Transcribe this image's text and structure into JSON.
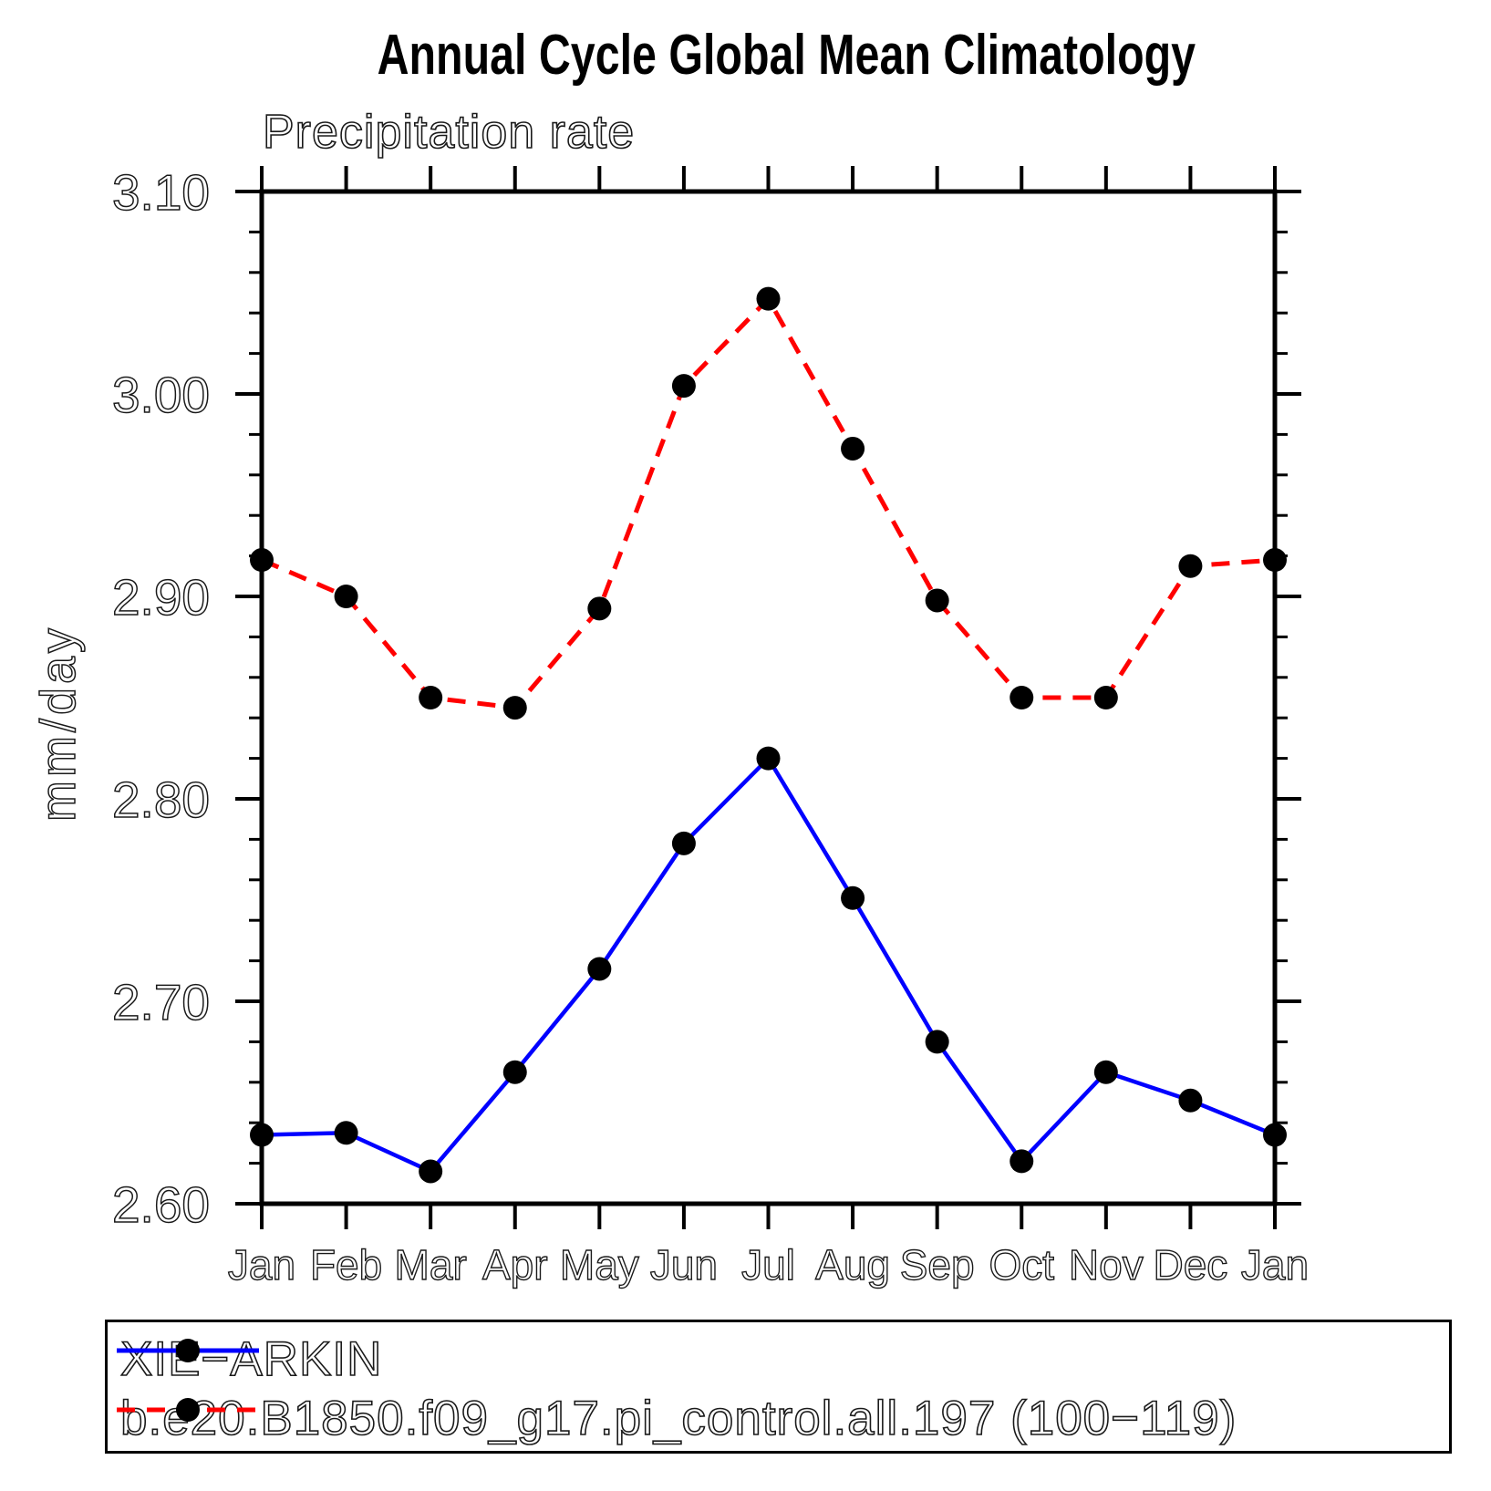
{
  "chart_data": {
    "type": "line",
    "title": "Annual Cycle Global Mean Climatology",
    "subtitle": "Precipitation rate",
    "ylabel": "mm/day",
    "xlabel": "",
    "categories": [
      "Jan",
      "Feb",
      "Mar",
      "Apr",
      "May",
      "Jun",
      "Jul",
      "Aug",
      "Sep",
      "Oct",
      "Nov",
      "Dec",
      "Jan"
    ],
    "ylim": [
      2.6,
      3.1
    ],
    "ytick_labels": [
      "2.60",
      "2.70",
      "2.80",
      "2.90",
      "3.00",
      "3.10"
    ],
    "ytick_step_major": 0.1,
    "ytick_step_minor": 0.02,
    "grid": false,
    "legend_position": "bottom",
    "axis_color": "#000000",
    "series": [
      {
        "name": "XIE−ARKIN",
        "color": "#0000ff",
        "style": "solid",
        "marker": "circle",
        "marker_color": "#000000",
        "values": [
          2.634,
          2.635,
          2.616,
          2.665,
          2.716,
          2.778,
          2.82,
          2.751,
          2.68,
          2.621,
          2.665,
          2.651,
          2.634
        ]
      },
      {
        "name": "b.e20.B1850.f09_g17.pi_control.all.197 (100−119)",
        "color": "#ff0000",
        "style": "dashed",
        "marker": "circle",
        "marker_color": "#000000",
        "values": [
          2.918,
          2.9,
          2.85,
          2.845,
          2.894,
          3.004,
          3.047,
          2.973,
          2.898,
          2.85,
          2.85,
          2.915,
          2.918
        ]
      }
    ]
  }
}
